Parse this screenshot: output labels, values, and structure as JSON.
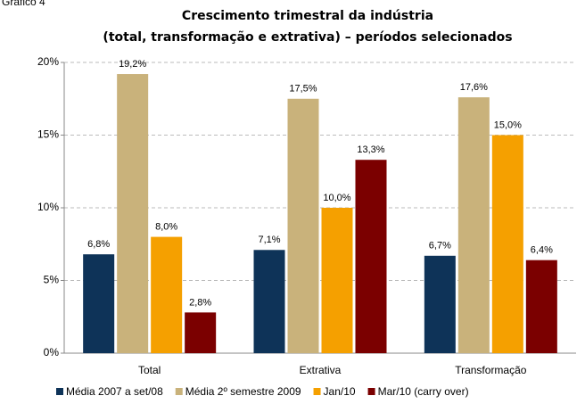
{
  "chart_data": {
    "type": "bar",
    "caption": "Gráfico 4",
    "title": [
      "Crescimento trimestral da indústria",
      "(total, transformação e extrativa) – períodos selecionados"
    ],
    "categories": [
      "Total",
      "Extrativa",
      "Transformação"
    ],
    "series": [
      {
        "name": "Média 2007 a set/08",
        "color": "#0e3358",
        "values": [
          6.8,
          7.1,
          6.7
        ],
        "value_labels": [
          "6,8%",
          "7,1%",
          "6,7%"
        ]
      },
      {
        "name": "Média 2º semestre 2009",
        "color": "#c9b27b",
        "values": [
          19.2,
          17.5,
          17.6
        ],
        "value_labels": [
          "19,2%",
          "17,5%",
          "17,6%"
        ]
      },
      {
        "name": "Jan/10",
        "color": "#f5a000",
        "values": [
          8.0,
          10.0,
          15.0
        ],
        "value_labels": [
          "8,0%",
          "10,0%",
          "15,0%"
        ]
      },
      {
        "name": "Mar/10 (carry over)",
        "color": "#7b0000",
        "values": [
          2.8,
          13.3,
          6.4
        ],
        "value_labels": [
          "2,8%",
          "13,3%",
          "6,4%"
        ]
      }
    ],
    "ylim": [
      0,
      20
    ],
    "yticks": [
      {
        "value": 0,
        "label": "0%"
      },
      {
        "value": 5,
        "label": "5%"
      },
      {
        "value": 10,
        "label": "10%"
      },
      {
        "value": 15,
        "label": "15%"
      },
      {
        "value": 20,
        "label": "20%"
      }
    ],
    "grid": true,
    "legend": "bottom"
  }
}
